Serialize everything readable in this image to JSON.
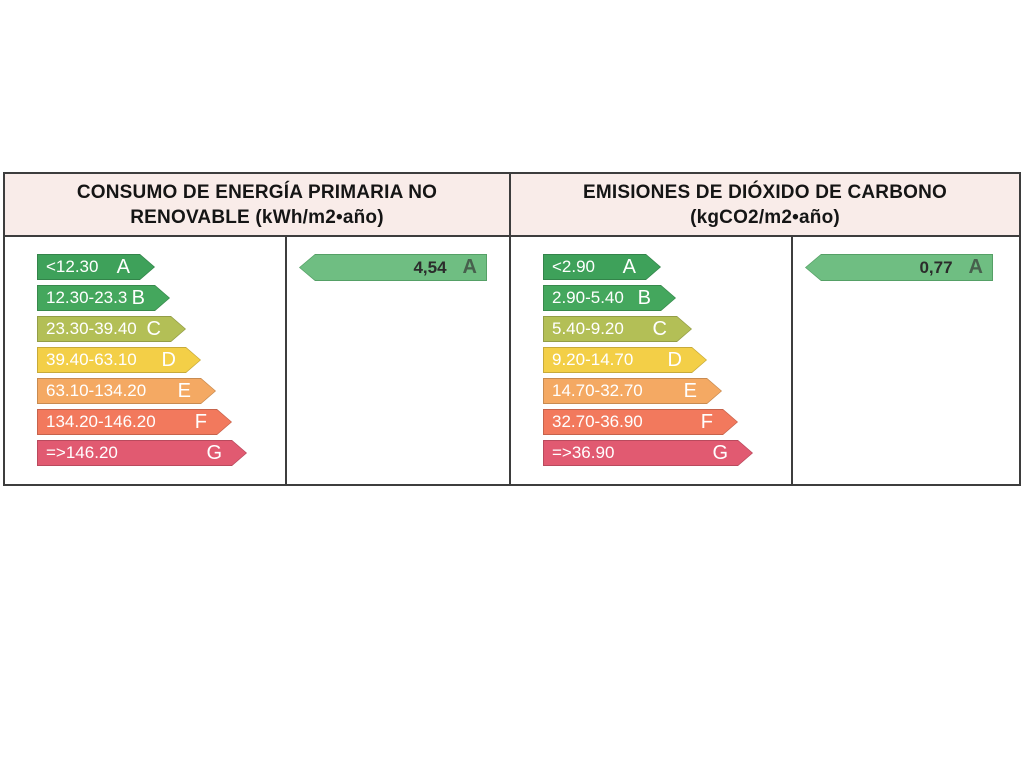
{
  "colors": {
    "table_border": "#3d3d3d",
    "header_bg": "#f9ece9",
    "header_text": "#151515",
    "rating_fill": "#6fbe82",
    "rating_rim": "#55a066",
    "rating_value_text": "#2b2b2b",
    "rating_letter_text": "#47604d",
    "scale_text": "#ffffff"
  },
  "table": {
    "panels": [
      {
        "id": "consumo",
        "title_line1": "CONSUMO DE ENERGÍA PRIMARIA NO",
        "title_line2": "RENOVABLE (kWh/m2•año)",
        "scale": [
          {
            "range": "<12.30",
            "letter": "A",
            "color": "#3ea15a"
          },
          {
            "range": "12.30-23.3",
            "letter": "B",
            "color": "#44a75d"
          },
          {
            "range": "23.30-39.40",
            "letter": "C",
            "color": "#b3bf56"
          },
          {
            "range": "39.40-63.10",
            "letter": "D",
            "color": "#f3cf47"
          },
          {
            "range": "63.10-134.20",
            "letter": "E",
            "color": "#f4a963"
          },
          {
            "range": "134.20-146.20",
            "letter": "F",
            "color": "#f2795d"
          },
          {
            "range": "=>146.20",
            "letter": "G",
            "color": "#e15a71"
          }
        ],
        "rating": {
          "value": "4,54",
          "letter": "A"
        }
      },
      {
        "id": "emisiones",
        "title_line1": "EMISIONES DE DIÓXIDO DE CARBONO",
        "title_line2": "(kgCO2/m2•año)",
        "scale": [
          {
            "range": "<2.90",
            "letter": "A",
            "color": "#3ea15a"
          },
          {
            "range": "2.90-5.40",
            "letter": "B",
            "color": "#44a75d"
          },
          {
            "range": "5.40-9.20",
            "letter": "C",
            "color": "#b3bf56"
          },
          {
            "range": "9.20-14.70",
            "letter": "D",
            "color": "#f3cf47"
          },
          {
            "range": "14.70-32.70",
            "letter": "E",
            "color": "#f4a963"
          },
          {
            "range": "32.70-36.90",
            "letter": "F",
            "color": "#f2795d"
          },
          {
            "range": "=>36.90",
            "letter": "G",
            "color": "#e15a71"
          }
        ],
        "rating": {
          "value": "0,77",
          "letter": "A"
        }
      }
    ]
  },
  "chart_data": [
    {
      "type": "bar",
      "title": "CONSUMO DE ENERGÍA PRIMARIA NO RENOVABLE (kWh/m2•año)",
      "unit": "kWh/m2•año",
      "categories": [
        "A",
        "B",
        "C",
        "D",
        "E",
        "F",
        "G"
      ],
      "ranges": [
        "<12.30",
        "12.30-23.3",
        "23.30-39.40",
        "39.40-63.10",
        "63.10-134.20",
        "134.20-146.20",
        "=>146.20"
      ],
      "range_breakpoints": [
        12.3,
        23.3,
        39.4,
        63.1,
        134.2,
        146.2
      ],
      "values": [
        1,
        2,
        3,
        4,
        5,
        6,
        7
      ],
      "rating_value": 4.54,
      "rating_class": "A",
      "legend_position": "none",
      "grid": false
    },
    {
      "type": "bar",
      "title": "EMISIONES DE DIÓXIDO DE CARBONO (kgCO2/m2•año)",
      "unit": "kgCO2/m2•año",
      "categories": [
        "A",
        "B",
        "C",
        "D",
        "E",
        "F",
        "G"
      ],
      "ranges": [
        "<2.90",
        "2.90-5.40",
        "5.40-9.20",
        "9.20-14.70",
        "14.70-32.70",
        "32.70-36.90",
        "=>36.90"
      ],
      "range_breakpoints": [
        2.9,
        5.4,
        9.2,
        14.7,
        32.7,
        36.9
      ],
      "values": [
        1,
        2,
        3,
        4,
        5,
        6,
        7
      ],
      "rating_value": 0.77,
      "rating_class": "A",
      "legend_position": "none",
      "grid": false
    }
  ]
}
